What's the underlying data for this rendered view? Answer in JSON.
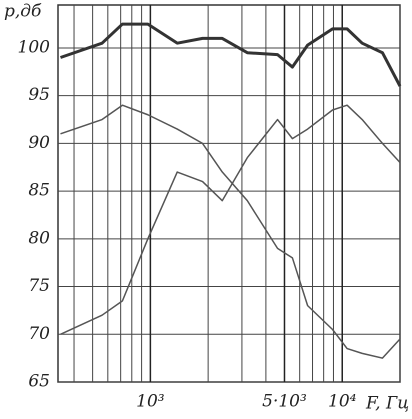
{
  "chart_data": {
    "type": "line",
    "ylabel": "р,дб",
    "xlabel": "F, Гц",
    "xscale": "log",
    "x": [
      340,
      560,
      715,
      970,
      1380,
      1870,
      2370,
      3200,
      4600,
      5500,
      6600,
      8900,
      10600,
      12700,
      16200,
      20000
    ],
    "series": [
      {
        "color": "#333333",
        "width": 3,
        "values": [
          99,
          100.5,
          102.5,
          102.5,
          100.5,
          101,
          101,
          99.5,
          99.3,
          98,
          100.3,
          102,
          102,
          100.5,
          99.5,
          96
        ]
      },
      {
        "color": "#555555",
        "width": 1.5,
        "values": [
          91,
          92.5,
          94,
          93,
          91.5,
          90,
          87,
          84,
          79,
          78,
          73,
          70.5,
          68.5,
          68,
          67.5,
          69.5
        ]
      },
      {
        "color": "#555555",
        "width": 1.5,
        "values": [
          70,
          72,
          73.5,
          80,
          87,
          86,
          84,
          88.5,
          92.5,
          90.5,
          91.5,
          93.5,
          94,
          92.5,
          90,
          88
        ]
      }
    ],
    "xlim": [
      330,
      20000
    ],
    "ylim": [
      65,
      104.5
    ],
    "yticks": [
      65,
      70,
      75,
      80,
      85,
      90,
      95,
      100
    ],
    "xticks": [
      {
        "value": 1000,
        "label": "10³"
      },
      {
        "value": 5000,
        "label": "5·10³"
      },
      {
        "value": 10000,
        "label": "10⁴"
      }
    ],
    "xgrid": [
      400,
      500,
      600,
      700,
      800,
      900,
      2000,
      3000,
      4000,
      6000,
      7000,
      8000,
      9000,
      20000
    ],
    "grid": true
  }
}
